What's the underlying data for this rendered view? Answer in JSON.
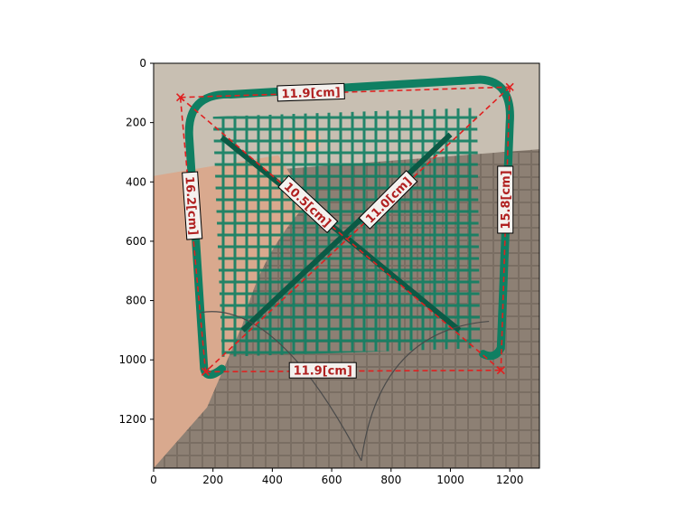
{
  "image": {
    "description_colors": {
      "wall": "#c8bfb2",
      "tile": "#86786c",
      "basket": "#0f7f62",
      "basket_dark": "#0b5a45",
      "skin": "#d9a98e"
    }
  },
  "axes": {
    "xlim": [
      0,
      1300
    ],
    "ylim": [
      1365,
      0
    ],
    "x_ticks": [
      0,
      200,
      400,
      600,
      800,
      1000,
      1200
    ],
    "y_ticks": [
      0,
      200,
      400,
      600,
      800,
      1000,
      1200
    ],
    "x_tick_labels": [
      "0",
      "200",
      "400",
      "600",
      "800",
      "1000",
      "1200"
    ],
    "y_tick_labels": [
      "0",
      "200",
      "400",
      "600",
      "800",
      "1000",
      "1200"
    ]
  },
  "markers": {
    "color": "#e02020",
    "points": [
      {
        "name": "top-left",
        "x": 90,
        "y": 115
      },
      {
        "name": "top-right",
        "x": 1200,
        "y": 80
      },
      {
        "name": "bottom-left",
        "x": 175,
        "y": 1040
      },
      {
        "name": "bottom-right",
        "x": 1170,
        "y": 1035
      }
    ]
  },
  "measurements": [
    {
      "from": 0,
      "to": 1,
      "label": "11.9[cm]",
      "lx": 530,
      "ly": 98,
      "angle": -2
    },
    {
      "from": 2,
      "to": 3,
      "label": "11.9[cm]",
      "lx": 570,
      "ly": 1035,
      "angle": 0
    },
    {
      "from": 0,
      "to": 2,
      "label": "16.2[cm]",
      "lx": 130,
      "ly": 480,
      "angle": 86
    },
    {
      "from": 1,
      "to": 3,
      "label": "15.8[cm]",
      "lx": 1185,
      "ly": 460,
      "angle": -90
    },
    {
      "from": 0,
      "to": 3,
      "label": "10.5[cm]",
      "lx": 520,
      "ly": 475,
      "angle": 43
    },
    {
      "from": 1,
      "to": 2,
      "label": "11.0[cm]",
      "lx": 790,
      "ly": 460,
      "angle": -45
    }
  ]
}
